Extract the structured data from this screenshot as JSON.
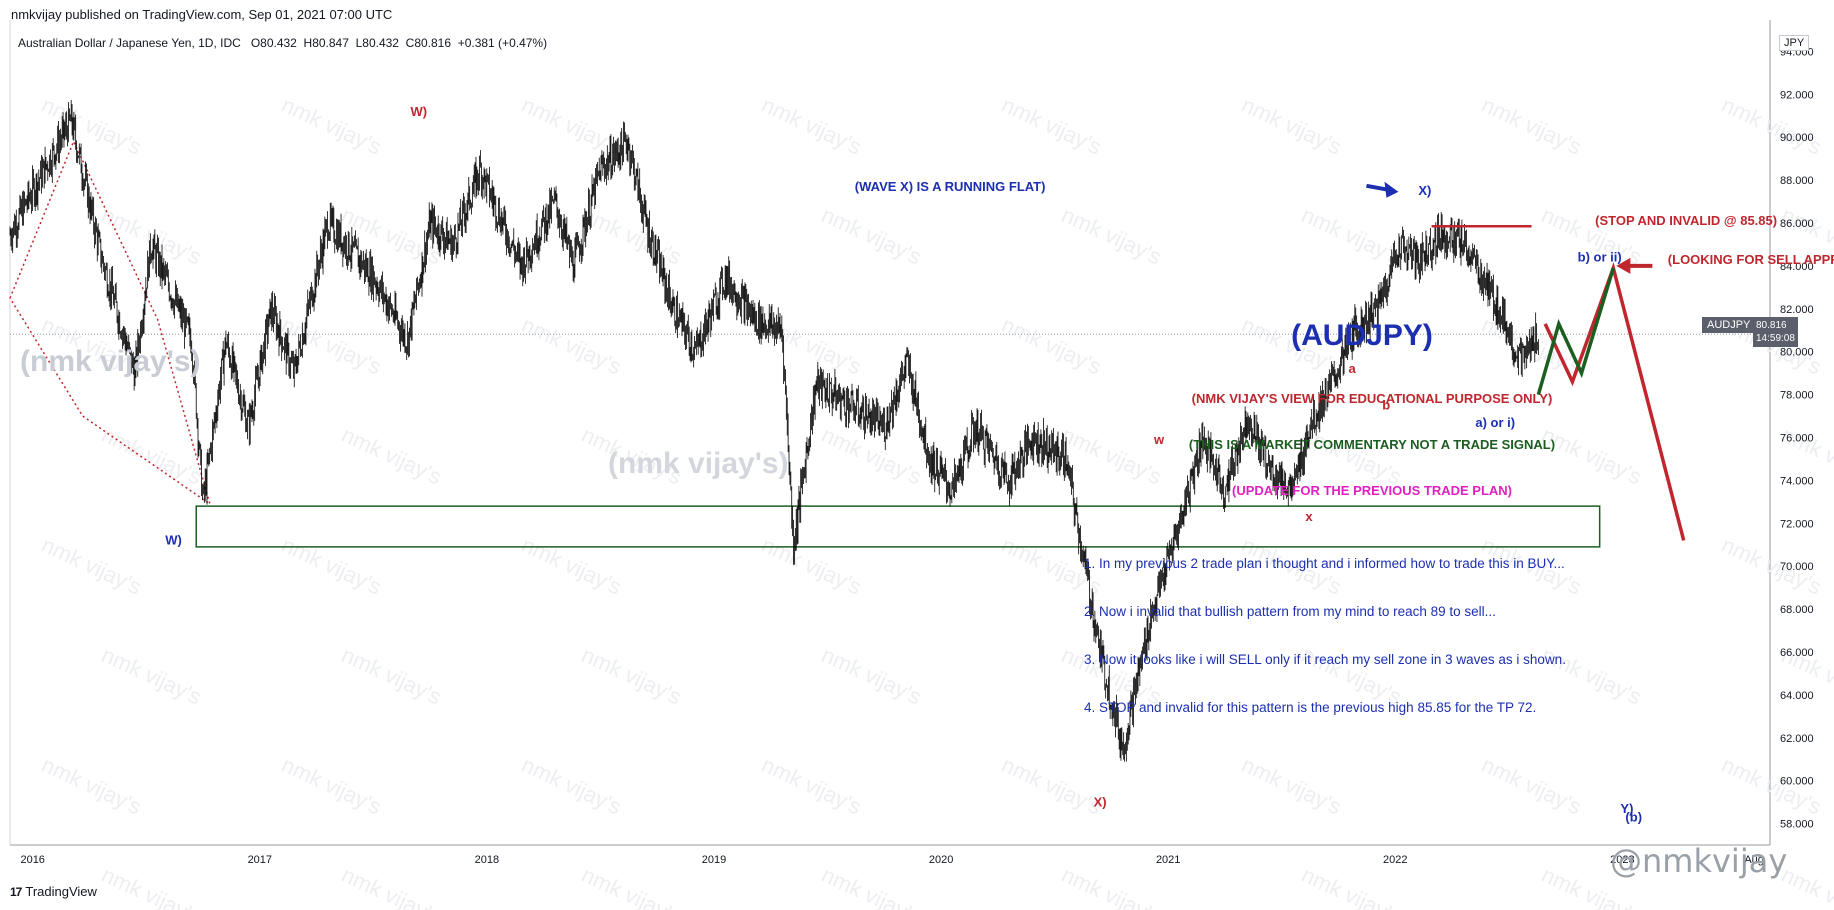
{
  "header": {
    "published": "nmkvijay published on TradingView.com, Sep 01, 2021 07:00 UTC",
    "symbol": "Australian Dollar / Japanese Yen, 1D, IDC",
    "open_label": "O",
    "open": "80.432",
    "high_label": "H",
    "high": "80.847",
    "low_label": "L",
    "low": "80.432",
    "close_label": "C",
    "close": "80.816",
    "change": "+0.381 (+0.47%)"
  },
  "currency": "JPY",
  "price_tag": {
    "symbol": "AUDJPY",
    "price": "80.816",
    "countdown": "14:59:08"
  },
  "footer": {
    "brand": "TradingView",
    "watermark_handle": "@nmkvijay"
  },
  "watermarks": {
    "main": "(nmk vijay's)",
    "repeat": "nmk vijay's"
  },
  "colors": {
    "red": "#c0262d",
    "blue": "#1c2fb0",
    "green": "#1b5e20",
    "magenta": "#e020c0",
    "candle": "#000000",
    "zone": "#1b5e20"
  },
  "chart_data": {
    "type": "candlestick",
    "symbol": "AUDJPY",
    "timeframe": "1D",
    "ylim": [
      57,
      95
    ],
    "y_ticks": [
      58,
      60,
      62,
      64,
      66,
      68,
      70,
      72,
      74,
      76,
      78,
      80,
      82,
      84,
      86,
      88,
      90,
      92,
      94
    ],
    "y_tick_labels": [
      "58.000",
      "60.000",
      "62.000",
      "64.000",
      "66.000",
      "68.000",
      "70.000",
      "72.000",
      "74.000",
      "76.000",
      "78.000",
      "80.000",
      "82.000",
      "84.000",
      "86.000",
      "88.000",
      "90.000",
      "92.000",
      "94.000"
    ],
    "xlim": [
      2015.9,
      2023.65
    ],
    "x_ticks": [
      {
        "t": 2016.0,
        "label": "2016"
      },
      {
        "t": 2017.0,
        "label": "2017"
      },
      {
        "t": 2018.0,
        "label": "2018"
      },
      {
        "t": 2019.0,
        "label": "2019"
      },
      {
        "t": 2020.0,
        "label": "2020"
      },
      {
        "t": 2021.0,
        "label": "2021"
      },
      {
        "t": 2022.0,
        "label": "2022"
      },
      {
        "t": 2023.0,
        "label": "2023"
      },
      {
        "t": 2023.58,
        "label": "Aug"
      }
    ],
    "price_path": [
      [
        2015.9,
        85.5
      ],
      [
        2016.05,
        88.5
      ],
      [
        2016.17,
        90.8
      ],
      [
        2016.3,
        84.5
      ],
      [
        2016.45,
        79.0
      ],
      [
        2016.52,
        85.0
      ],
      [
        2016.7,
        80.5
      ],
      [
        2016.75,
        73.0
      ],
      [
        2016.85,
        80.5
      ],
      [
        2016.95,
        76.5
      ],
      [
        2017.05,
        82.0
      ],
      [
        2017.15,
        79.0
      ],
      [
        2017.3,
        86.0
      ],
      [
        2017.5,
        83.5
      ],
      [
        2017.65,
        80.5
      ],
      [
        2017.75,
        86.0
      ],
      [
        2017.85,
        85.0
      ],
      [
        2017.97,
        88.5
      ],
      [
        2018.05,
        86.5
      ],
      [
        2018.15,
        84.0
      ],
      [
        2018.3,
        87.0
      ],
      [
        2018.38,
        84.0
      ],
      [
        2018.5,
        88.5
      ],
      [
        2018.62,
        89.8
      ],
      [
        2018.7,
        86.0
      ],
      [
        2018.82,
        82.0
      ],
      [
        2018.92,
        80.0
      ],
      [
        2019.05,
        83.5
      ],
      [
        2019.18,
        81.5
      ],
      [
        2019.3,
        81.0
      ],
      [
        2019.35,
        71.0
      ],
      [
        2019.45,
        78.5
      ],
      [
        2019.6,
        77.5
      ],
      [
        2019.75,
        76.5
      ],
      [
        2019.85,
        79.5
      ],
      [
        2019.95,
        75.0
      ],
      [
        2020.05,
        73.5
      ],
      [
        2020.15,
        76.5
      ],
      [
        2020.3,
        74.0
      ],
      [
        2020.4,
        76.0
      ],
      [
        2020.55,
        75.0
      ],
      [
        2020.6,
        72.0
      ],
      [
        2020.7,
        66.0
      ],
      [
        2020.8,
        61.5
      ],
      [
        2020.92,
        67.5
      ],
      [
        2021.05,
        72.0
      ],
      [
        2021.15,
        76.0
      ],
      [
        2021.25,
        73.5
      ],
      [
        2021.35,
        77.0
      ],
      [
        2021.45,
        74.5
      ],
      [
        2021.55,
        73.5
      ],
      [
        2021.62,
        76.5
      ],
      [
        2021.72,
        78.5
      ],
      [
        2021.82,
        81.0
      ],
      [
        2021.92,
        82.0
      ],
      [
        2022.02,
        85.0
      ],
      [
        2022.1,
        84.2
      ],
      [
        2022.2,
        85.5
      ],
      [
        2022.3,
        85.0
      ],
      [
        2022.38,
        83.5
      ],
      [
        2022.48,
        81.5
      ],
      [
        2022.55,
        79.5
      ],
      [
        2022.63,
        80.8
      ]
    ],
    "support_zone": {
      "x0": 2016.72,
      "x1": 2022.9,
      "y0": 70.9,
      "y1": 72.8
    },
    "stop_line": {
      "x0": 2022.16,
      "x1": 2022.6,
      "y": 85.85
    },
    "projection_green": [
      [
        2022.63,
        78.0
      ],
      [
        2022.72,
        81.3
      ],
      [
        2022.82,
        79.0
      ],
      [
        2022.96,
        83.9
      ]
    ],
    "projection_red": [
      [
        2022.66,
        81.3
      ],
      [
        2022.78,
        78.6
      ],
      [
        2022.96,
        83.9
      ],
      [
        2023.27,
        71.2
      ]
    ],
    "invalid_dotted": [
      [
        2015.9,
        82.5
      ],
      [
        2016.18,
        89.8
      ],
      [
        2016.55,
        81.5
      ],
      [
        2016.78,
        72.9
      ],
      [
        2016.22,
        77.0
      ],
      [
        2015.9,
        82.5
      ]
    ],
    "wave_labels": [
      {
        "t": 2017.7,
        "y": 91.0,
        "text": "W)",
        "color": "red"
      },
      {
        "t": 2016.62,
        "y": 71.0,
        "text": "W)",
        "color": "blue"
      },
      {
        "t": 2020.7,
        "y": 58.8,
        "text": "X)",
        "color": "red"
      },
      {
        "t": 2022.13,
        "y": 87.3,
        "text": "X)",
        "color": "blue"
      },
      {
        "t": 2020.96,
        "y": 75.7,
        "text": "w",
        "color": "red"
      },
      {
        "t": 2021.62,
        "y": 72.1,
        "text": "x",
        "color": "red"
      },
      {
        "t": 2021.81,
        "y": 79.0,
        "text": "a",
        "color": "red"
      },
      {
        "t": 2021.96,
        "y": 77.3,
        "text": "b",
        "color": "red"
      },
      {
        "t": 2022.44,
        "y": 76.5,
        "text": "a) or i)",
        "color": "blue"
      },
      {
        "t": 2022.9,
        "y": 84.2,
        "text": "b) or ii)",
        "color": "blue"
      },
      {
        "t": 2023.02,
        "y": 58.5,
        "text": "Y)",
        "color": "blue"
      },
      {
        "t": 2023.05,
        "y": 58.1,
        "text": "(b)",
        "color": "blue"
      }
    ],
    "annotations": [
      {
        "t": 2019.62,
        "y": 87.5,
        "text": "(WAVE X) IS A RUNNING FLAT)",
        "color": "blue"
      },
      {
        "t": 2022.88,
        "y": 85.9,
        "text": "(STOP AND INVALID @ 85.85)",
        "color": "red"
      },
      {
        "t": 2023.2,
        "y": 84.1,
        "text": "(LOOKING FOR SELL APPROX HERE)",
        "color": "red"
      }
    ],
    "commentary": {
      "title": "(AUDJPY)",
      "line1": "(NMK VIJAY'S VIEW FOR EDUCATIONAL PURPOSE ONLY)",
      "line2": "(THIS IS A MARKET COMMENTARY NOT A TRADE SIGNAL)",
      "line3": "(UPDATE FOR THE PREVIOUS TRADE PLAN)",
      "points": [
        "1. In my previous 2 trade plan i thought and i informed how to trade this in BUY...",
        "2. Now i invalid that bullish pattern from my mind to reach 89 to sell...",
        "3. Now it looks like i will SELL only if it reach my sell zone in 3 waves as i shown.",
        "4. STOP and invalid for this pattern is the previous high 85.85 for the TP 72."
      ]
    }
  }
}
